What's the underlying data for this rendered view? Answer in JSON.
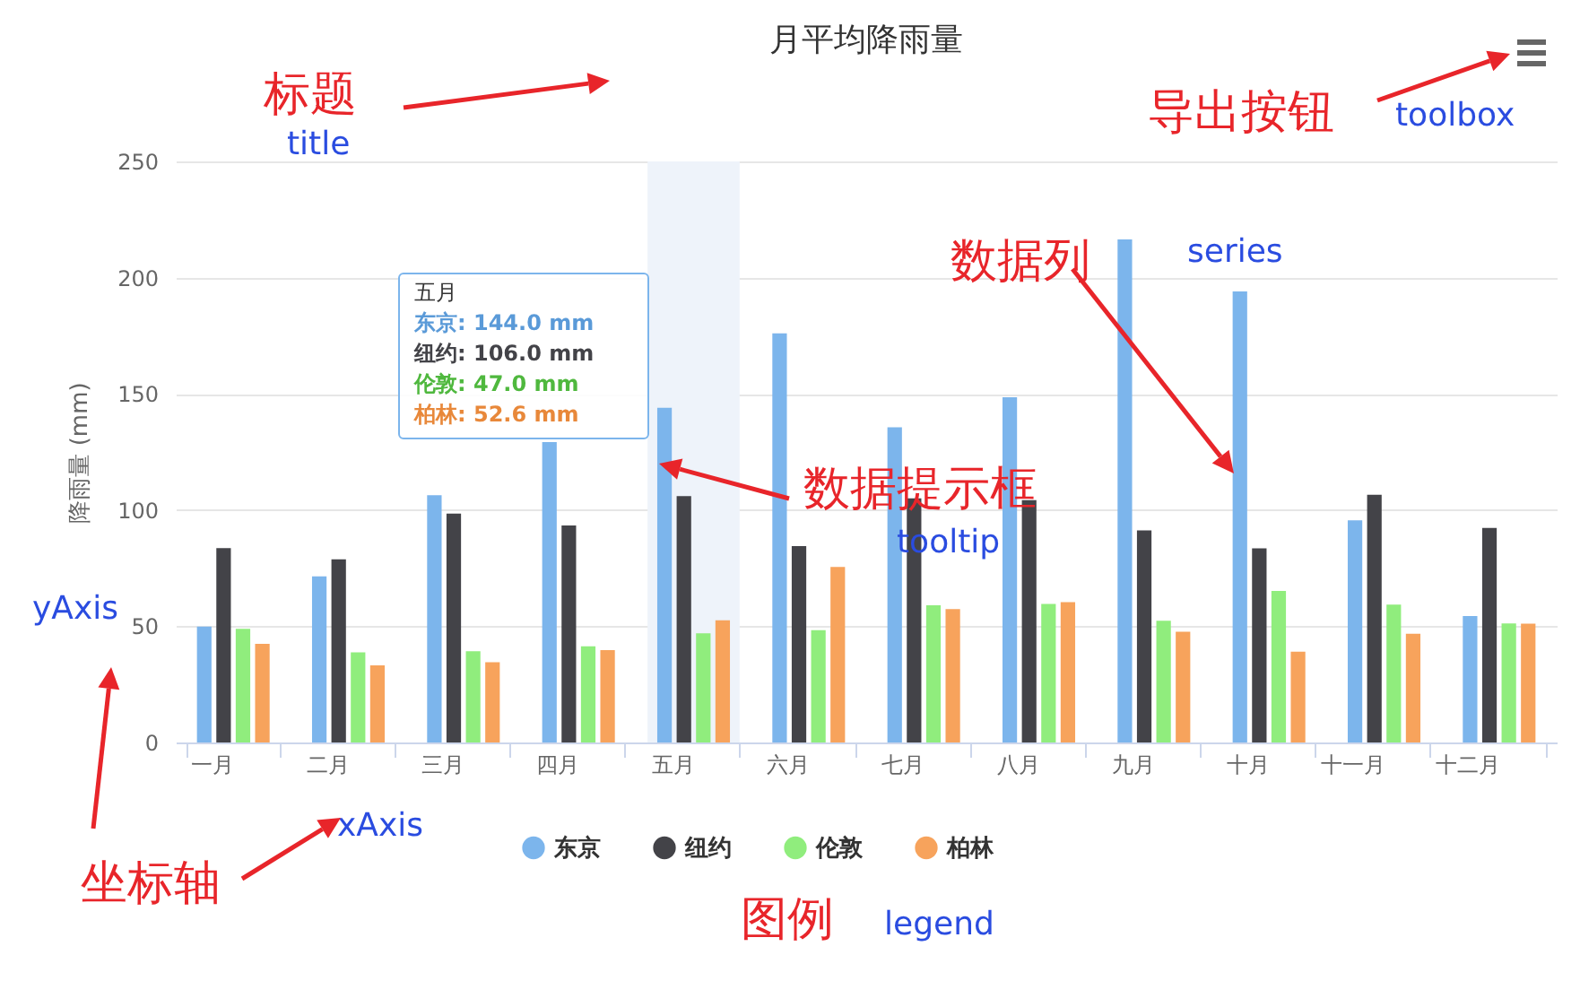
{
  "chart_data": {
    "type": "bar",
    "title": "月平均降雨量",
    "ylabel": "降雨量 (mm)",
    "categories": [
      "一月",
      "二月",
      "三月",
      "四月",
      "五月",
      "六月",
      "七月",
      "八月",
      "九月",
      "十月",
      "十一月",
      "十二月"
    ],
    "series": [
      {
        "name": "东京",
        "color": "#7cb5ec",
        "values": [
          49.9,
          71.5,
          106.4,
          129.2,
          144.0,
          176.0,
          135.6,
          148.5,
          216.4,
          194.1,
          95.6,
          54.4
        ]
      },
      {
        "name": "纽约",
        "color": "#434348",
        "values": [
          83.6,
          78.8,
          98.5,
          93.4,
          106.0,
          84.5,
          105.0,
          104.3,
          91.2,
          83.5,
          106.6,
          92.3
        ]
      },
      {
        "name": "伦敦",
        "color": "#90ed7d",
        "values": [
          48.9,
          38.8,
          39.3,
          41.4,
          47.0,
          48.3,
          59.0,
          59.6,
          52.4,
          65.2,
          59.3,
          51.2
        ]
      },
      {
        "name": "柏林",
        "color": "#f7a35c",
        "values": [
          42.4,
          33.2,
          34.5,
          39.7,
          52.6,
          75.5,
          57.4,
          60.4,
          47.6,
          39.1,
          46.8,
          51.1
        ]
      }
    ],
    "ylim": [
      0,
      250
    ],
    "yticks": [
      0,
      50,
      100,
      150,
      200,
      250
    ],
    "grid": "y",
    "legend": "bottom",
    "bands": [
      {
        "axis": "x",
        "from": "五月",
        "to": "五月",
        "color": "#eef3fa"
      }
    ],
    "annotations": [
      "标题",
      "title",
      "导出按钮",
      "toolbox",
      "数据列",
      "series",
      {
        "text": "数据提示框",
        "x": "五月",
        "y": 120
      },
      "tooltip",
      "yAxis",
      "坐标轴",
      "xAxis",
      "图例",
      "legend",
      "五月",
      "东京: 144.0 mm",
      "纽约: 106.0 mm",
      "伦敦: 47.0 mm",
      "柏林: 52.6 mm"
    ]
  }
}
